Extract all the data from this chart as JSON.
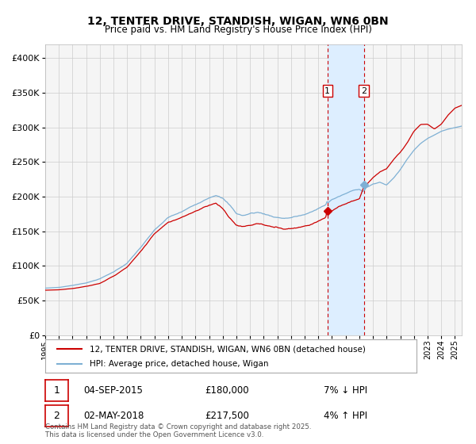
{
  "title": "12, TENTER DRIVE, STANDISH, WIGAN, WN6 0BN",
  "subtitle": "Price paid vs. HM Land Registry's House Price Index (HPI)",
  "legend_line1": "12, TENTER DRIVE, STANDISH, WIGAN, WN6 0BN (detached house)",
  "legend_line2": "HPI: Average price, detached house, Wigan",
  "annotation1_label": "1",
  "annotation1_date": "04-SEP-2015",
  "annotation1_price": "£180,000",
  "annotation1_hpi": "7% ↓ HPI",
  "annotation1_value": 180000,
  "annotation1_year": 2015.67,
  "annotation2_label": "2",
  "annotation2_date": "02-MAY-2018",
  "annotation2_price": "£217,500",
  "annotation2_hpi": "4% ↑ HPI",
  "annotation2_value": 217500,
  "annotation2_hpi_value": 209000,
  "annotation2_year": 2018.33,
  "annotation1_hpi_value": 193000,
  "red_color": "#cc0000",
  "blue_color": "#7eb0d4",
  "bg_color": "#f5f5f5",
  "grid_color": "#cccccc",
  "highlight_color": "#ddeeff",
  "footer": "Contains HM Land Registry data © Crown copyright and database right 2025.\nThis data is licensed under the Open Government Licence v3.0.",
  "ylim": [
    0,
    420000
  ],
  "xlim_start": 1995.0,
  "xlim_end": 2025.5
}
